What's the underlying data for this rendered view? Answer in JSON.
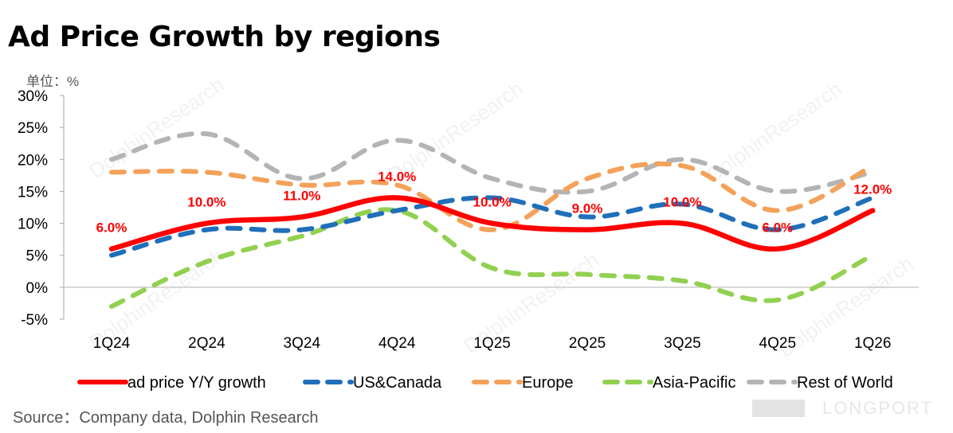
{
  "header": {
    "title": "Ad Price Growth by regions",
    "unit": "单位：%"
  },
  "footer": {
    "source": "Source：Company data, Dolphin Research",
    "brand": "LONGPORT"
  },
  "watermark": "DolphinResearch",
  "chart_data": {
    "type": "line",
    "title": "Ad Price Growth by regions",
    "categories": [
      "1Q24",
      "2Q24",
      "3Q24",
      "4Q24",
      "1Q25",
      "2Q25",
      "3Q25",
      "4Q25",
      "1Q26"
    ],
    "ylim": [
      -5,
      30
    ],
    "yticks": [
      -5,
      0,
      5,
      10,
      15,
      20,
      25,
      30
    ],
    "ytick_labels": [
      "-5%",
      "0%",
      "5%",
      "10%",
      "15%",
      "20%",
      "25%",
      "30%"
    ],
    "grid": false,
    "legend": "bottom",
    "series": [
      {
        "name": "ad price Y/Y growth",
        "values": [
          6,
          10,
          11,
          14,
          10,
          9,
          10,
          6,
          12
        ],
        "color": "#ff0000",
        "dash": false,
        "labels": [
          "6.0%",
          "10.0%",
          "11.0%",
          "14.0%",
          "10.0%",
          "9.0%",
          "10.0%",
          "6.0%",
          "12.0%"
        ]
      },
      {
        "name": "US&Canada",
        "values": [
          5,
          9,
          9,
          12,
          14,
          11,
          13,
          9,
          14
        ],
        "color": "#1f6fba",
        "dash": true
      },
      {
        "name": "Europe",
        "values": [
          18,
          18,
          16,
          16,
          9,
          17,
          19,
          12,
          19
        ],
        "color": "#f4a15a",
        "dash": true
      },
      {
        "name": "Asia-Pacific",
        "values": [
          -3,
          4,
          8,
          12,
          3,
          2,
          1,
          -2,
          5
        ],
        "color": "#92d050",
        "dash": true
      },
      {
        "name": "Rest of World",
        "values": [
          20,
          24,
          17,
          23,
          17,
          15,
          20,
          15,
          18
        ],
        "color": "#b4b4b4",
        "dash": true
      }
    ]
  }
}
